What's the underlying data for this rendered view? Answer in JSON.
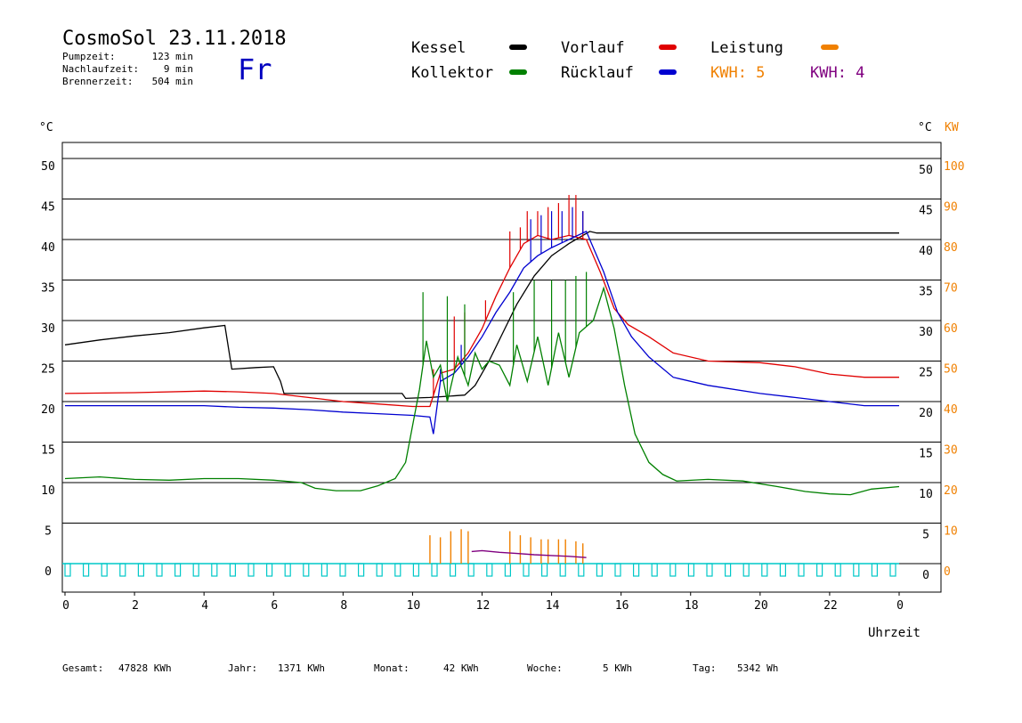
{
  "header": {
    "title": "CosmoSol 23.11.2018",
    "day": "Fr",
    "info": [
      {
        "label": "Pumpzeit:",
        "value": "123 min"
      },
      {
        "label": "Nachlaufzeit:",
        "value": "9 min"
      },
      {
        "label": "Brennerzeit:",
        "value": "504 min"
      }
    ]
  },
  "legend": {
    "items": [
      {
        "label": "Kessel",
        "color": "#000000"
      },
      {
        "label": "Vorlauf",
        "color": "#e00000"
      },
      {
        "label": "Leistung",
        "color": "#f08000"
      },
      {
        "label": "Kollektor",
        "color": "#008000"
      },
      {
        "label": "Rücklauf",
        "color": "#0000d0"
      }
    ],
    "kwh": [
      {
        "label": "KWH: 5",
        "color": "#f08000"
      },
      {
        "label": "KWH: 4",
        "color": "#800080"
      }
    ]
  },
  "axes": {
    "left_unit": "°C",
    "right_unit": "°C",
    "right_unit2": "KW",
    "x_label": "Uhrzeit"
  },
  "footer": [
    {
      "label": "Gesamt:",
      "value": "47828 KWh"
    },
    {
      "label": "Jahr:",
      "value": "1371 KWh"
    },
    {
      "label": "Monat:",
      "value": "42 KWh"
    },
    {
      "label": "Woche:",
      "value": "5 KWh"
    },
    {
      "label": "Tag:",
      "value": "5342 Wh"
    }
  ],
  "chart_data": {
    "type": "line",
    "xlabel": "Uhrzeit",
    "ylabel": "°C",
    "y2label": "KW",
    "xlim": [
      0,
      24
    ],
    "ylim": [
      -3,
      53
    ],
    "y2lim": [
      -6,
      106
    ],
    "grid": true,
    "x_ticks": [
      "0",
      "2",
      "4",
      "6",
      "8",
      "10",
      "12",
      "14",
      "16",
      "18",
      "20",
      "22",
      "0"
    ],
    "x_tick_values": [
      0,
      2,
      4,
      6,
      8,
      10,
      12,
      14,
      16,
      18,
      20,
      22,
      24
    ],
    "y_ticks": [
      0,
      5,
      10,
      15,
      20,
      25,
      30,
      35,
      40,
      45,
      50
    ],
    "y2_ticks": [
      0,
      10,
      20,
      30,
      40,
      50,
      60,
      70,
      80,
      90,
      100
    ],
    "legend_position": "top",
    "series": [
      {
        "name": "Kessel",
        "color": "#000000",
        "points": [
          [
            0,
            27.0
          ],
          [
            1,
            27.6
          ],
          [
            2,
            28.1
          ],
          [
            3,
            28.5
          ],
          [
            4,
            29.1
          ],
          [
            4.6,
            29.4
          ],
          [
            4.8,
            24.0
          ],
          [
            5.5,
            24.2
          ],
          [
            6.0,
            24.3
          ],
          [
            6.2,
            22.5
          ],
          [
            6.3,
            21.0
          ],
          [
            7,
            21.0
          ],
          [
            8,
            21.0
          ],
          [
            9,
            21.0
          ],
          [
            9.7,
            21.0
          ],
          [
            9.8,
            20.4
          ],
          [
            10.5,
            20.5
          ],
          [
            11.5,
            20.8
          ],
          [
            11.8,
            22.0
          ],
          [
            12.2,
            25.0
          ],
          [
            12.6,
            28.5
          ],
          [
            13.0,
            32.0
          ],
          [
            13.5,
            35.5
          ],
          [
            14.0,
            38.0
          ],
          [
            14.5,
            39.5
          ],
          [
            14.9,
            40.5
          ],
          [
            15.1,
            41.0
          ],
          [
            15.3,
            40.8
          ],
          [
            24,
            40.8
          ]
        ]
      },
      {
        "name": "Vorlauf",
        "color": "#e00000",
        "points": [
          [
            0,
            21.0
          ],
          [
            2,
            21.1
          ],
          [
            4,
            21.3
          ],
          [
            5,
            21.2
          ],
          [
            6,
            21.0
          ],
          [
            7,
            20.5
          ],
          [
            8,
            20.0
          ],
          [
            9,
            19.7
          ],
          [
            10,
            19.4
          ],
          [
            10.5,
            19.4
          ],
          [
            10.8,
            23.5
          ],
          [
            11.2,
            24.0
          ],
          [
            11.6,
            26.0
          ],
          [
            12.0,
            29.0
          ],
          [
            12.4,
            33.0
          ],
          [
            12.8,
            36.5
          ],
          [
            13.2,
            39.5
          ],
          [
            13.6,
            40.5
          ],
          [
            14.0,
            40.0
          ],
          [
            14.5,
            40.5
          ],
          [
            15.0,
            40.0
          ],
          [
            15.4,
            36.0
          ],
          [
            15.8,
            31.5
          ],
          [
            16.2,
            29.5
          ],
          [
            16.8,
            28.0
          ],
          [
            17.5,
            26.0
          ],
          [
            18.5,
            25.0
          ],
          [
            20,
            24.8
          ],
          [
            21,
            24.3
          ],
          [
            22,
            23.4
          ],
          [
            23,
            23.0
          ],
          [
            24,
            23.0
          ]
        ]
      },
      {
        "name": "Rücklauf",
        "color": "#0000d0",
        "points": [
          [
            0,
            19.5
          ],
          [
            2,
            19.5
          ],
          [
            4,
            19.5
          ],
          [
            5,
            19.3
          ],
          [
            6,
            19.2
          ],
          [
            7,
            19.0
          ],
          [
            8,
            18.7
          ],
          [
            9,
            18.5
          ],
          [
            10,
            18.3
          ],
          [
            10.5,
            18.1
          ],
          [
            10.6,
            16.0
          ],
          [
            10.8,
            22.5
          ],
          [
            11.2,
            23.5
          ],
          [
            11.6,
            25.5
          ],
          [
            12.0,
            28.0
          ],
          [
            12.4,
            31.0
          ],
          [
            12.8,
            33.5
          ],
          [
            13.2,
            36.5
          ],
          [
            13.6,
            38.0
          ],
          [
            14.0,
            39.0
          ],
          [
            14.5,
            40.0
          ],
          [
            15.0,
            41.0
          ],
          [
            15.5,
            36.0
          ],
          [
            15.9,
            31.0
          ],
          [
            16.3,
            28.0
          ],
          [
            16.8,
            25.5
          ],
          [
            17.5,
            23.0
          ],
          [
            18.5,
            22.0
          ],
          [
            20,
            21.0
          ],
          [
            21,
            20.5
          ],
          [
            22,
            20.0
          ],
          [
            23,
            19.5
          ],
          [
            24,
            19.5
          ]
        ]
      },
      {
        "name": "Kollektor",
        "color": "#008000",
        "points": [
          [
            0,
            10.5
          ],
          [
            1,
            10.7
          ],
          [
            2,
            10.4
          ],
          [
            3,
            10.3
          ],
          [
            4,
            10.5
          ],
          [
            5,
            10.5
          ],
          [
            6,
            10.3
          ],
          [
            6.8,
            10.0
          ],
          [
            7.2,
            9.3
          ],
          [
            7.8,
            9.0
          ],
          [
            8.5,
            9.0
          ],
          [
            9.0,
            9.6
          ],
          [
            9.5,
            10.5
          ],
          [
            9.8,
            12.5
          ],
          [
            10.0,
            17.0
          ],
          [
            10.2,
            21.5
          ],
          [
            10.4,
            27.5
          ],
          [
            10.6,
            23.0
          ],
          [
            10.8,
            24.5
          ],
          [
            11.0,
            20.0
          ],
          [
            11.3,
            25.5
          ],
          [
            11.6,
            22.0
          ],
          [
            11.8,
            26.0
          ],
          [
            12.0,
            24.0
          ],
          [
            12.2,
            25.0
          ],
          [
            12.5,
            24.5
          ],
          [
            12.8,
            22.0
          ],
          [
            13.0,
            27.0
          ],
          [
            13.3,
            22.5
          ],
          [
            13.6,
            28.0
          ],
          [
            13.9,
            22.0
          ],
          [
            14.2,
            28.5
          ],
          [
            14.5,
            23.0
          ],
          [
            14.8,
            28.5
          ],
          [
            15.2,
            30.0
          ],
          [
            15.5,
            34.0
          ],
          [
            15.8,
            29.0
          ],
          [
            16.1,
            22.0
          ],
          [
            16.4,
            16.0
          ],
          [
            16.8,
            12.5
          ],
          [
            17.2,
            11.0
          ],
          [
            17.6,
            10.2
          ],
          [
            18.5,
            10.4
          ],
          [
            19.5,
            10.2
          ],
          [
            20.5,
            9.5
          ],
          [
            21.3,
            8.9
          ],
          [
            22.0,
            8.6
          ],
          [
            22.6,
            8.5
          ],
          [
            23.2,
            9.2
          ],
          [
            24,
            9.5
          ]
        ]
      }
    ],
    "spikes": {
      "Vorlauf": [
        [
          10.6,
          24.0
        ],
        [
          11.2,
          30.5
        ],
        [
          11.5,
          31.0
        ],
        [
          12.1,
          32.5
        ],
        [
          12.8,
          41.0
        ],
        [
          13.1,
          41.5
        ],
        [
          13.3,
          43.5
        ],
        [
          13.6,
          43.5
        ],
        [
          13.9,
          44.0
        ],
        [
          14.2,
          44.5
        ],
        [
          14.5,
          45.5
        ],
        [
          14.7,
          45.5
        ],
        [
          14.9,
          43.5
        ]
      ],
      "Rücklauf": [
        [
          10.8,
          24.0
        ],
        [
          11.4,
          27.0
        ],
        [
          13.4,
          42.5
        ],
        [
          13.7,
          43.0
        ],
        [
          14.0,
          43.5
        ],
        [
          14.3,
          43.5
        ],
        [
          14.6,
          44.0
        ],
        [
          14.9,
          43.5
        ]
      ],
      "Kollektor": [
        [
          10.3,
          33.5
        ],
        [
          11.0,
          33.0
        ],
        [
          11.5,
          32.0
        ],
        [
          12.9,
          33.5
        ],
        [
          13.5,
          35.0
        ],
        [
          14.0,
          35.0
        ],
        [
          14.4,
          35.0
        ],
        [
          14.7,
          35.5
        ],
        [
          15.0,
          36.0
        ]
      ]
    },
    "power_kw": {
      "name": "Leistung",
      "color": "#f08000",
      "spikes": [
        [
          10.5,
          7.0
        ],
        [
          10.8,
          6.5
        ],
        [
          11.1,
          8.0
        ],
        [
          11.4,
          8.5
        ],
        [
          11.6,
          8.0
        ],
        [
          12.8,
          8.0
        ],
        [
          13.1,
          7.0
        ],
        [
          13.4,
          6.5
        ],
        [
          13.7,
          6.0
        ],
        [
          13.9,
          6.0
        ],
        [
          14.2,
          6.0
        ],
        [
          14.4,
          6.0
        ],
        [
          14.7,
          5.5
        ],
        [
          14.9,
          5.0
        ]
      ],
      "baseline": [
        [
          11.7,
          3.0
        ],
        [
          12.0,
          3.2
        ],
        [
          12.5,
          2.8
        ],
        [
          13.0,
          2.5
        ],
        [
          13.5,
          2.2
        ],
        [
          14.0,
          2.0
        ],
        [
          14.5,
          1.8
        ],
        [
          15.0,
          1.5
        ]
      ]
    },
    "pump_color": "#00c8c8"
  }
}
